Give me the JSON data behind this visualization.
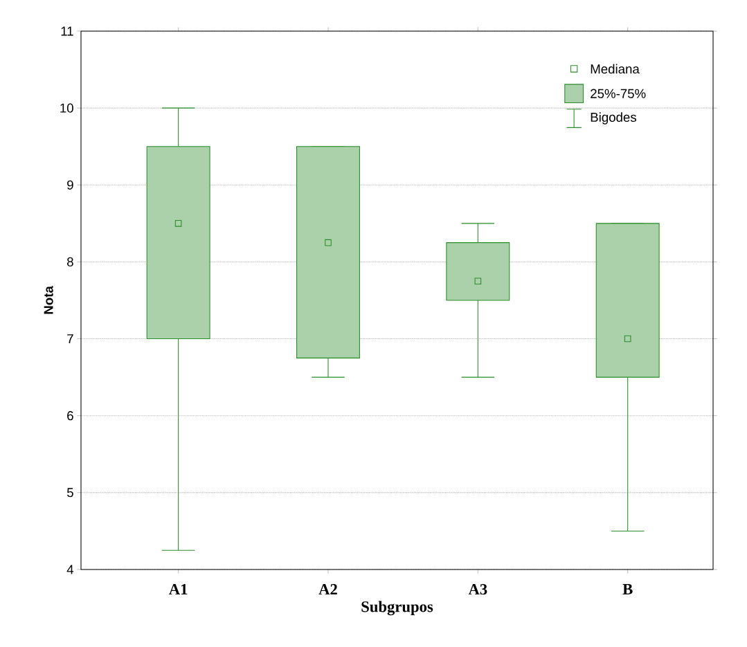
{
  "chart_data": {
    "type": "box",
    "xlabel": "Subgrupos",
    "ylabel": "Nota",
    "categories": [
      "A1",
      "A2",
      "A3",
      "B"
    ],
    "boxes": [
      {
        "low": 4.25,
        "q1": 7,
        "median": 8.5,
        "q3": 9.5,
        "high": 10
      },
      {
        "low": 6.5,
        "q1": 6.75,
        "median": 8.25,
        "q3": 9.5,
        "high": 9.5
      },
      {
        "low": 6.5,
        "q1": 7.5,
        "median": 7.75,
        "q3": 8.25,
        "high": 8.5
      },
      {
        "low": 4.5,
        "q1": 6.5,
        "median": 7,
        "q3": 8.5,
        "high": 8.5
      }
    ],
    "color": "#2a8c2a",
    "marker": "square",
    "ylim": [
      4,
      11
    ],
    "yticks": [
      4,
      5,
      6,
      7,
      8,
      9,
      10,
      11
    ],
    "grid": "y",
    "annotations": [
      "Mediana",
      "25%-75%",
      "Bigodes"
    ]
  }
}
